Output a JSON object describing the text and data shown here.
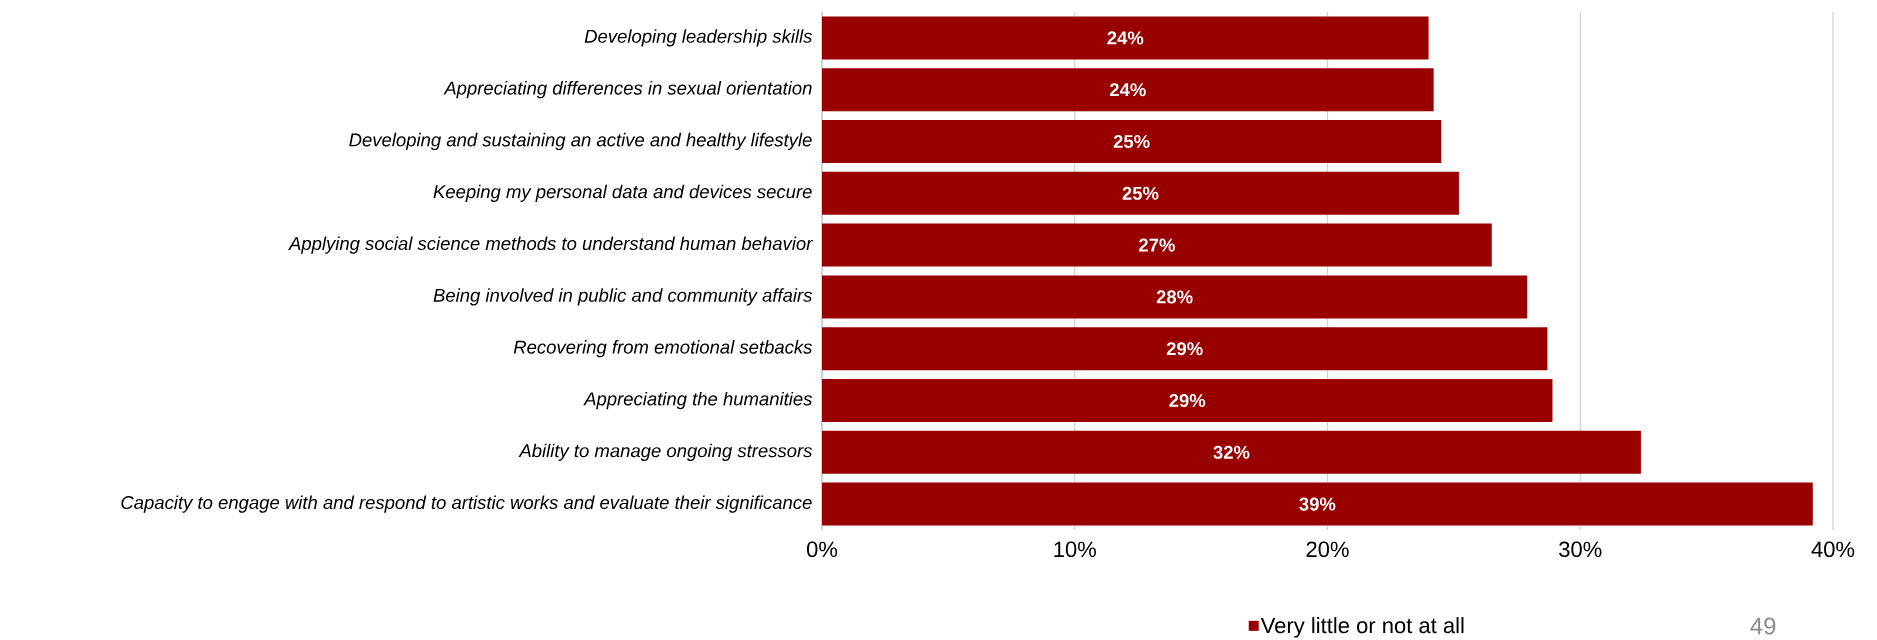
{
  "chart_data": {
    "type": "bar",
    "orientation": "horizontal",
    "categories": [
      "Developing leadership skills",
      "Appreciating differences in sexual orientation",
      "Developing and sustaining an active and healthy lifestyle",
      "Keeping my personal data and devices secure",
      "Applying social science methods to understand human behavior",
      "Being involved in public and community affairs",
      "Recovering from emotional setbacks",
      "Appreciating the humanities",
      "Ability to manage ongoing stressors",
      "Capacity to engage with and respond to artistic works and evaluate their significance"
    ],
    "series": [
      {
        "name": "Very little or not at all",
        "color": "#990000",
        "values": [
          24.0,
          24.2,
          24.5,
          25.2,
          26.5,
          27.9,
          28.7,
          28.9,
          32.4,
          39.2
        ],
        "value_labels": [
          "24%",
          "24%",
          "25%",
          "25%",
          "27%",
          "28%",
          "29%",
          "29%",
          "32%",
          "39%"
        ]
      }
    ],
    "xlim": [
      0,
      40
    ],
    "xticks": [
      {
        "value": 0,
        "label": "0%"
      },
      {
        "value": 10,
        "label": "10%"
      },
      {
        "value": 20,
        "label": "20%"
      },
      {
        "value": 30,
        "label": "30%"
      },
      {
        "value": 40,
        "label": "40%"
      }
    ],
    "grid": "x",
    "legend": "bottom",
    "annotations": [
      "49"
    ]
  }
}
